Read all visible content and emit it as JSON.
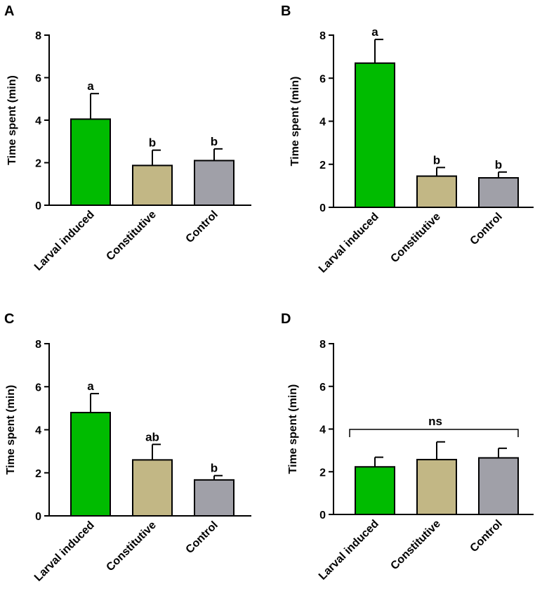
{
  "chart_data": [
    {
      "type": "bar",
      "panel_label": "A",
      "title": "",
      "xlabel": "",
      "ylabel": "Time spent (min)",
      "ylim": [
        0,
        8
      ],
      "yticks": [
        0,
        2,
        4,
        6,
        8
      ],
      "categories": [
        "Larval induced",
        "Constitutive",
        "Control"
      ],
      "values": [
        4.05,
        1.87,
        2.1
      ],
      "errors": [
        1.2,
        0.72,
        0.55
      ],
      "significance": [
        "a",
        "b",
        "b"
      ]
    },
    {
      "type": "bar",
      "panel_label": "B",
      "title": "",
      "xlabel": "",
      "ylabel": "Time spent (min)",
      "ylim": [
        0,
        8
      ],
      "yticks": [
        0,
        2,
        4,
        6,
        8
      ],
      "categories": [
        "Larval induced",
        "Constitutive",
        "Control"
      ],
      "values": [
        6.7,
        1.45,
        1.37
      ],
      "errors": [
        1.1,
        0.4,
        0.27
      ],
      "significance": [
        "a",
        "b",
        "b"
      ]
    },
    {
      "type": "bar",
      "panel_label": "C",
      "title": "",
      "xlabel": "",
      "ylabel": "Time spent (min)",
      "ylim": [
        0,
        8
      ],
      "yticks": [
        0,
        2,
        4,
        6,
        8
      ],
      "categories": [
        "Larval induced",
        "Constitutive",
        "Control"
      ],
      "values": [
        4.8,
        2.6,
        1.67
      ],
      "errors": [
        0.88,
        0.72,
        0.2
      ],
      "significance": [
        "a",
        "ab",
        "b"
      ]
    },
    {
      "type": "bar",
      "panel_label": "D",
      "title": "",
      "xlabel": "",
      "ylabel": "Time spent (min)",
      "ylim": [
        0,
        8
      ],
      "yticks": [
        0,
        2,
        4,
        6,
        8
      ],
      "categories": [
        "Larval induced",
        "Constitutive",
        "Control"
      ],
      "values": [
        2.23,
        2.57,
        2.65
      ],
      "errors": [
        0.45,
        0.83,
        0.45
      ],
      "significance": [
        "",
        "",
        ""
      ],
      "group_annotation": "ns"
    }
  ],
  "colors": {
    "larval_induced": "#00bb00",
    "constitutive": "#c2b785",
    "control": "#a0a0a8",
    "axis": "#000000"
  }
}
